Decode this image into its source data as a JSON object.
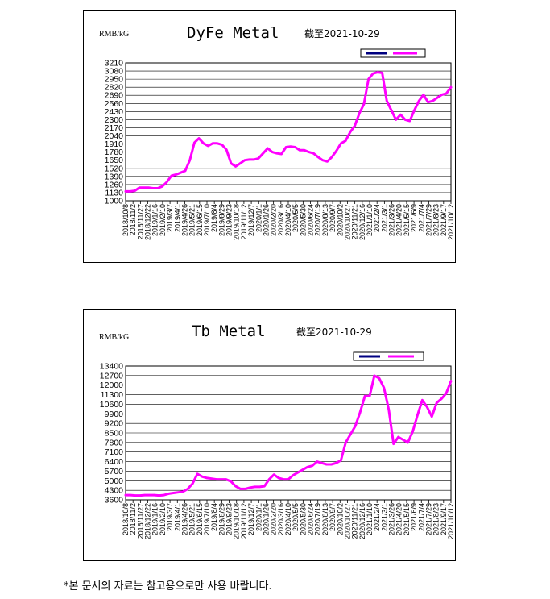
{
  "footnote": "*본 문서의 자료는 참고용으로만 사용 바랍니다.",
  "colors": {
    "line": "#ff00ff",
    "legend_a": "#000080",
    "grid": "#000000"
  },
  "chart_data": [
    {
      "type": "line",
      "title": "DyFe Metal",
      "subtitle": "截至2021-10-29",
      "ylabel": "RMB/kG",
      "ylim": [
        1000,
        3210
      ],
      "yticks": [
        1000,
        1130,
        1260,
        1390,
        1520,
        1650,
        1780,
        1910,
        2040,
        2170,
        2300,
        2430,
        2560,
        2690,
        2820,
        2950,
        3080,
        3210
      ],
      "xticks": [
        "2018/10/8",
        "2018/11/2",
        "2018/11/27",
        "2018/12/22",
        "2019/1/16",
        "2019/2/10",
        "2019/3/7",
        "2019/4/1",
        "2019/4/26",
        "2019/5/21",
        "2019/6/15",
        "2019/7/10",
        "2019/8/4",
        "2019/8/29",
        "2019/9/23",
        "2019/10/18",
        "2019/11/12",
        "2019/12/7",
        "2020/1/1",
        "2020/1/26",
        "2020/2/20",
        "2020/3/16",
        "2020/4/10",
        "2020/5/5",
        "2020/5/30",
        "2020/6/24",
        "2020/7/19",
        "2020/8/13",
        "2020/9/7",
        "2020/10/2",
        "2020/10/27",
        "2020/11/21",
        "2020/12/16",
        "2021/1/10",
        "2021/2/4",
        "2021/3/1",
        "2021/3/26",
        "2021/4/20",
        "2021/5/15",
        "2021/6/9",
        "2021/7/4",
        "2021/7/29",
        "2021/8/23",
        "2021/9/17",
        "2021/10/12"
      ],
      "series": [
        {
          "values": [
            1150,
            1150,
            1160,
            1210,
            1210,
            1210,
            1200,
            1200,
            1230,
            1300,
            1400,
            1420,
            1450,
            1480,
            1650,
            1930,
            2000,
            1920,
            1880,
            1920,
            1920,
            1900,
            1820,
            1600,
            1550,
            1600,
            1650,
            1660,
            1660,
            1680,
            1760,
            1840,
            1780,
            1760,
            1750,
            1860,
            1870,
            1860,
            1810,
            1810,
            1780,
            1760,
            1700,
            1650,
            1630,
            1700,
            1800,
            1920,
            1960,
            2100,
            2200,
            2400,
            2550,
            2950,
            3040,
            3060,
            3050,
            2600,
            2450,
            2300,
            2380,
            2300,
            2280,
            2450,
            2600,
            2700,
            2580,
            2600,
            2650,
            2700,
            2720,
            2820
          ]
        }
      ]
    },
    {
      "type": "line",
      "title": "Tb Metal",
      "subtitle": "截至2021-10-29",
      "ylabel": "RMB/kG",
      "ylim": [
        3600,
        13400
      ],
      "yticks": [
        3600,
        4300,
        5000,
        5700,
        6400,
        7100,
        7800,
        8500,
        9200,
        9900,
        10600,
        11300,
        12000,
        12700,
        13400
      ],
      "xticks": [
        "2018/10/8",
        "2018/11/2",
        "2018/11/27",
        "2018/12/22",
        "2019/1/16",
        "2019/2/10",
        "2019/3/7",
        "2019/4/1",
        "2019/4/26",
        "2019/5/21",
        "2019/6/15",
        "2019/7/10",
        "2019/8/4",
        "2019/8/29",
        "2019/9/23",
        "2019/10/18",
        "2019/11/12",
        "2019/12/7",
        "2020/1/1",
        "2020/1/26",
        "2020/2/20",
        "2020/3/16",
        "2020/4/10",
        "2020/5/5",
        "2020/5/30",
        "2020/6/24",
        "2020/7/19",
        "2020/8/13",
        "2020/9/7",
        "2020/10/2",
        "2020/10/27",
        "2020/11/21",
        "2020/12/16",
        "2021/1/10",
        "2021/2/4",
        "2021/3/1",
        "2021/3/26",
        "2021/4/20",
        "2021/5/15",
        "2021/6/9",
        "2021/7/4",
        "2021/7/29",
        "2021/8/23",
        "2021/9/17",
        "2021/10/12"
      ],
      "series": [
        {
          "values": [
            3950,
            3950,
            3920,
            3920,
            3950,
            3950,
            3950,
            3920,
            3950,
            4050,
            4100,
            4150,
            4200,
            4400,
            4800,
            5500,
            5300,
            5200,
            5150,
            5100,
            5100,
            5100,
            4950,
            4600,
            4400,
            4400,
            4500,
            4550,
            4550,
            4600,
            5100,
            5450,
            5200,
            5100,
            5100,
            5400,
            5600,
            5800,
            6000,
            6100,
            6400,
            6300,
            6200,
            6200,
            6300,
            6500,
            7800,
            8400,
            9000,
            10000,
            11200,
            11200,
            12700,
            12500,
            11800,
            10200,
            7700,
            8200,
            8000,
            7800,
            8600,
            9800,
            10900,
            10400,
            9700,
            10700,
            11000,
            11400,
            12300
          ]
        }
      ]
    }
  ]
}
